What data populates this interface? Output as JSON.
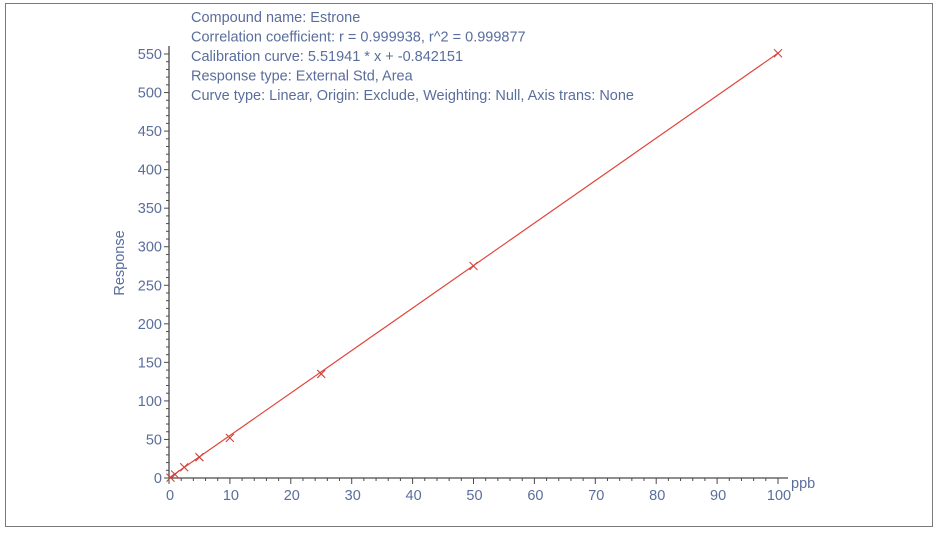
{
  "chart_data": {
    "type": "scatter",
    "annotations": [
      "Compound name: Estrone",
      "Correlation coefficient: r = 0.999938, r^2 = 0.999877",
      "Calibration curve: 5.51941 * x + -0.842151",
      "Response type: External Std, Area",
      "Curve type: Linear, Origin: Exclude, Weighting: Null, Axis trans: None"
    ],
    "xlabel": "ppb",
    "ylabel": "Response",
    "xlim": [
      0,
      100
    ],
    "ylim": [
      0,
      550
    ],
    "x_ticks": [
      0,
      10,
      20,
      30,
      40,
      50,
      60,
      70,
      80,
      90,
      100
    ],
    "y_ticks": [
      0,
      50,
      100,
      150,
      200,
      250,
      300,
      350,
      400,
      450,
      500,
      550
    ],
    "grid": false,
    "series": [
      {
        "x": [
          0.25,
          1,
          2.5,
          5,
          10,
          25,
          50,
          100
        ],
        "y": [
          0.5,
          4.5,
          14,
          27,
          52,
          135,
          275,
          551
        ]
      }
    ],
    "fit_line": {
      "slope": 5.51941,
      "intercept": -0.842151,
      "x_range": [
        0,
        100
      ]
    },
    "colors": {
      "line": "#e0463c",
      "markers": "#d2403a",
      "axis": "#4a4a4a",
      "text": "#5a6e9c",
      "frame": "#7a7a7a"
    }
  }
}
